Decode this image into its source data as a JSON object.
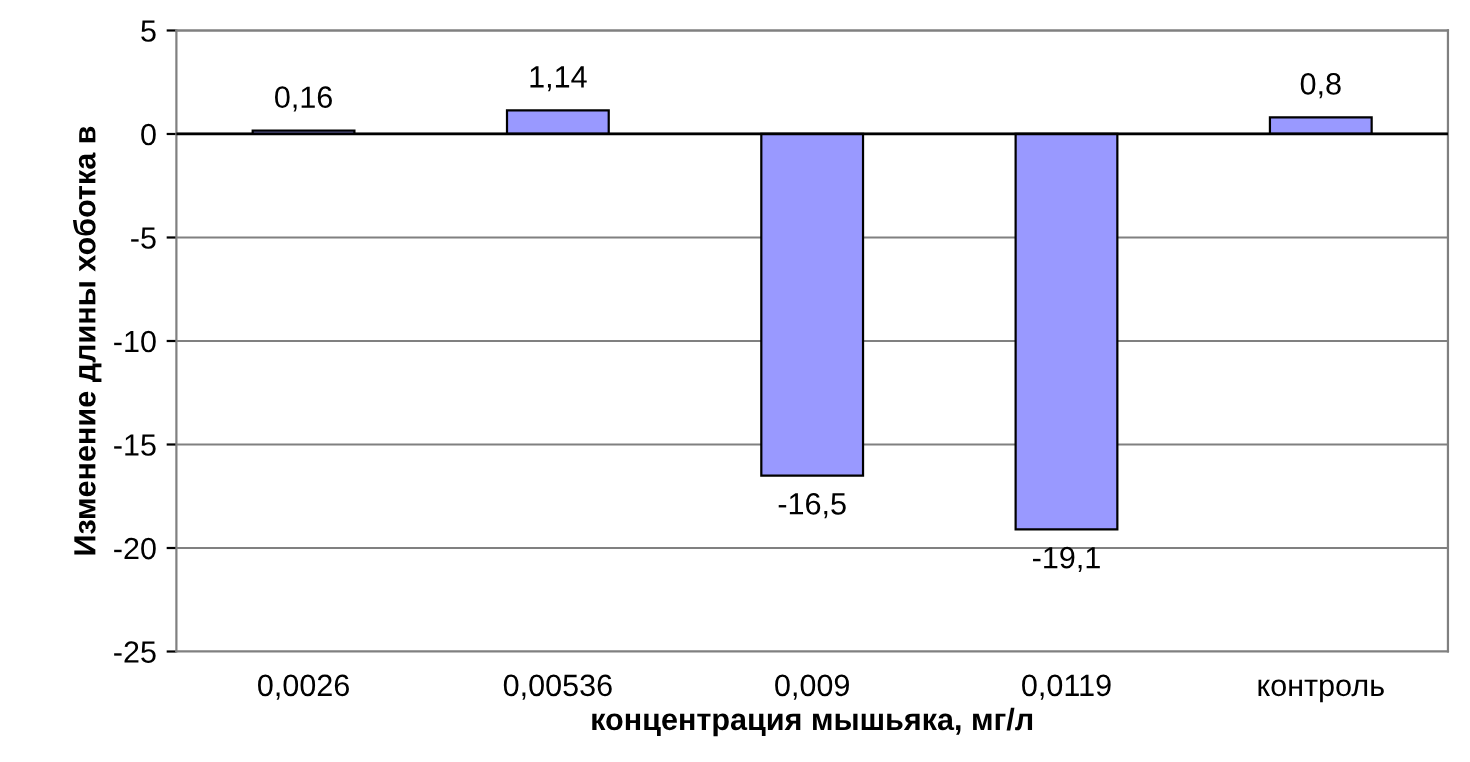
{
  "chart_data": {
    "type": "bar",
    "xlabel": "концентрация мышьяка, мг/л",
    "ylabel": "Изменение длины хоботка в",
    "categories": [
      "0,0026",
      "0,00536",
      "0,009",
      "0,0119",
      "контроль"
    ],
    "values": [
      0.16,
      1.14,
      -16.5,
      -19.1,
      0.8
    ],
    "value_labels": [
      "0,16",
      "1,14",
      "-16,5",
      "-19,1",
      "0,8"
    ],
    "color": "#9999ff",
    "ylim": [
      -25,
      5
    ],
    "yticks": [
      -25,
      -20,
      -15,
      -10,
      -5,
      0,
      5
    ],
    "grid": "y"
  }
}
